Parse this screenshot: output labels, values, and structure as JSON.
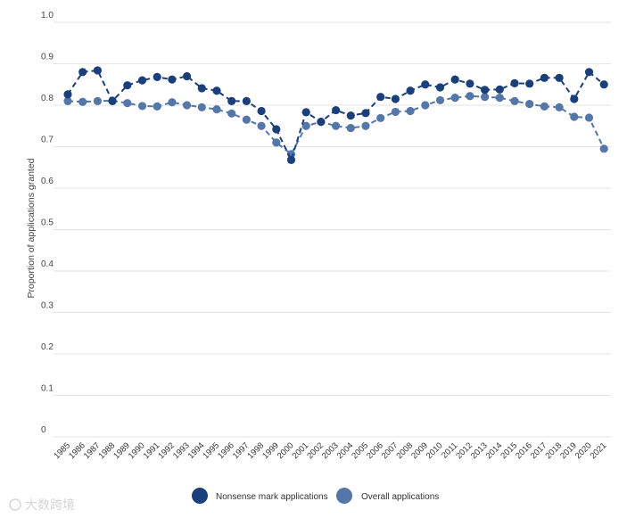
{
  "chart_data": {
    "type": "line",
    "ylabel": "Proportion of applications granted",
    "ylim": [
      0,
      1.0
    ],
    "yticks": [
      0,
      0.1,
      0.2,
      0.3,
      0.4,
      0.5,
      0.6,
      0.7,
      0.8,
      0.9,
      1.0
    ],
    "ytick_labels": [
      "0",
      "0.1",
      "0.2",
      "0.3",
      "0.4",
      "0.5",
      "0.6",
      "0.7",
      "0.8",
      "0.9",
      "1.0"
    ],
    "grid": "horizontal",
    "legend_position": "bottom-center",
    "categories": [
      "1985",
      "1986",
      "1987",
      "1988",
      "1989",
      "1990",
      "1991",
      "1992",
      "1993",
      "1994",
      "1995",
      "1996",
      "1997",
      "1998",
      "1999",
      "2000",
      "2001",
      "2002",
      "2003",
      "2004",
      "2005",
      "2006",
      "2007",
      "2008",
      "2009",
      "2010",
      "2011",
      "2012",
      "2013",
      "2014",
      "2015",
      "2016",
      "2017",
      "2018",
      "2019",
      "2020",
      "2021"
    ],
    "series": [
      {
        "name": "Nonsense mark applications",
        "color": "#1b3f7a",
        "values": [
          0.826,
          0.88,
          0.884,
          0.81,
          0.848,
          0.86,
          0.868,
          0.862,
          0.87,
          0.841,
          0.835,
          0.81,
          0.81,
          0.786,
          0.742,
          0.668,
          0.783,
          0.76,
          0.788,
          0.775,
          0.781,
          0.82,
          0.815,
          0.835,
          0.85,
          0.843,
          0.862,
          0.852,
          0.837,
          0.838,
          0.853,
          0.852,
          0.866,
          0.866,
          0.815,
          0.88,
          0.85
        ]
      },
      {
        "name": "Overall applications",
        "color": "#5476a8",
        "values": [
          0.81,
          0.808,
          0.81,
          0.811,
          0.805,
          0.798,
          0.797,
          0.807,
          0.8,
          0.795,
          0.79,
          0.78,
          0.765,
          0.75,
          0.71,
          0.682,
          0.75,
          0.76,
          0.75,
          0.745,
          0.75,
          0.769,
          0.784,
          0.786,
          0.8,
          0.812,
          0.818,
          0.822,
          0.82,
          0.818,
          0.81,
          0.803,
          0.797,
          0.795,
          0.772,
          0.77,
          0.695
        ]
      }
    ]
  },
  "watermark": {
    "text": "大数跨境"
  }
}
